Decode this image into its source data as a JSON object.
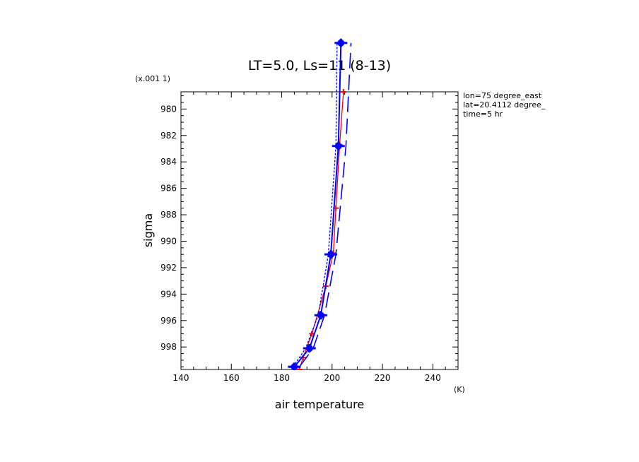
{
  "chart_data": {
    "type": "line",
    "title": "LT=5.0, Ls=11 (8-13)",
    "xlabel": "air temperature",
    "xunit": "(K)",
    "ylabel": "sigma",
    "yunit": "(x.001 1)",
    "xlim": [
      140,
      250
    ],
    "ylim": [
      999.7,
      978.7
    ],
    "y_inverted": true,
    "x_ticks": [
      140,
      160,
      180,
      200,
      220,
      240
    ],
    "y_ticks": [
      980,
      982,
      984,
      986,
      988,
      990,
      992,
      994,
      996,
      998
    ],
    "grid": false,
    "annotations": [
      "lon=75 degree_east",
      "lat=20.4112 degree_",
      "time=5 hr"
    ],
    "series": [
      {
        "color": "#ff0000",
        "style": "solid",
        "marker": "plus",
        "points": [
          {
            "x": 187,
            "y": 999.7
          },
          {
            "x": 188.5,
            "y": 998.8
          },
          {
            "x": 192,
            "y": 997.0
          },
          {
            "x": 197.5,
            "y": 993.4
          },
          {
            "x": 200.5,
            "y": 990.9
          },
          {
            "x": 201.5,
            "y": 987.5
          },
          {
            "x": 203,
            "y": 982.7
          },
          {
            "x": 204.5,
            "y": 978.7
          }
        ]
      },
      {
        "color": "#0000ff",
        "style": "solid",
        "marker": "circle",
        "points": [
          {
            "x": 185,
            "y": 999.5
          },
          {
            "x": 191,
            "y": 998.1
          },
          {
            "x": 195.5,
            "y": 995.6
          },
          {
            "x": 199.5,
            "y": 991.0
          },
          {
            "x": 202.5,
            "y": 982.8
          },
          {
            "x": 203.5,
            "y": 975.0
          }
        ]
      },
      {
        "color": "#0000ff",
        "style": "dashed-long",
        "marker": "none",
        "points": [
          {
            "x": 187,
            "y": 999.5
          },
          {
            "x": 192.5,
            "y": 998.1
          },
          {
            "x": 197,
            "y": 995.6
          },
          {
            "x": 201.5,
            "y": 991.0
          },
          {
            "x": 205.5,
            "y": 982.8
          },
          {
            "x": 207.5,
            "y": 975.0
          }
        ]
      },
      {
        "color": "#0000ff",
        "style": "dotted",
        "marker": "none",
        "points": [
          {
            "x": 184.5,
            "y": 999.5
          },
          {
            "x": 189.5,
            "y": 998.1
          },
          {
            "x": 194.5,
            "y": 995.6
          },
          {
            "x": 198.5,
            "y": 991.0
          },
          {
            "x": 201.5,
            "y": 982.8
          },
          {
            "x": 202,
            "y": 975.0
          }
        ]
      }
    ]
  }
}
